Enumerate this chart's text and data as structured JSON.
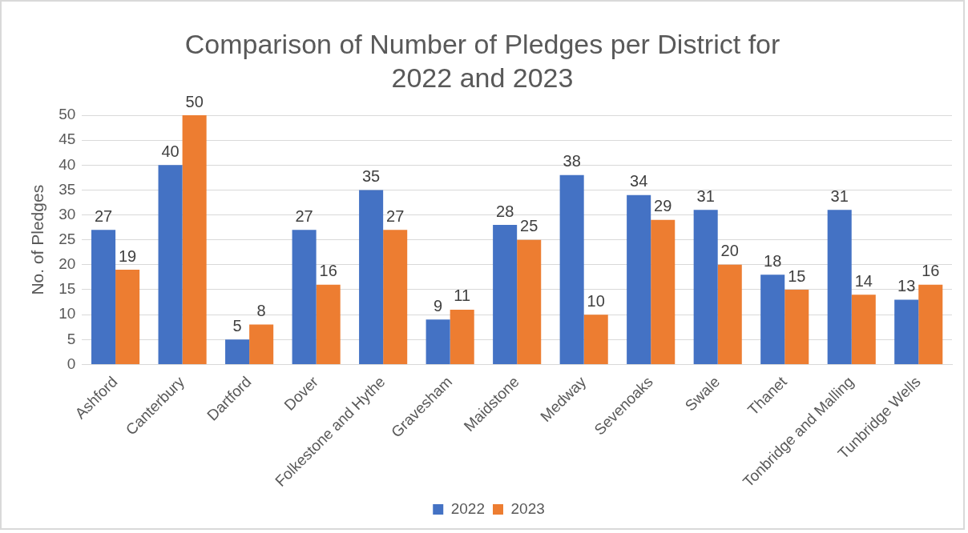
{
  "chart_data": {
    "type": "bar",
    "title": "Comparison of Number of Pledges per District for 2022 and 2023",
    "ylabel": "No. of Pledges",
    "categories": [
      "Ashford",
      "Canterbury",
      "Dartford",
      "Dover",
      "Folkestone and Hythe",
      "Gravesham",
      "Maidstone",
      "Medway",
      "Sevenoaks",
      "Swale",
      "Thanet",
      "Tonbridge and Malling",
      "Tunbridge Wells"
    ],
    "series": [
      {
        "name": "2022",
        "color": "#4472c4",
        "values": [
          27,
          40,
          5,
          27,
          35,
          9,
          28,
          38,
          34,
          31,
          18,
          31,
          13
        ]
      },
      {
        "name": "2023",
        "color": "#ed7d31",
        "values": [
          19,
          50,
          8,
          16,
          27,
          11,
          25,
          10,
          29,
          20,
          15,
          14,
          16
        ]
      }
    ],
    "ylim": [
      0,
      50
    ],
    "yticks": [
      0,
      5,
      10,
      15,
      20,
      25,
      30,
      35,
      40,
      45,
      50
    ],
    "grid": "y",
    "legend": "bottom",
    "data_labels": true
  }
}
